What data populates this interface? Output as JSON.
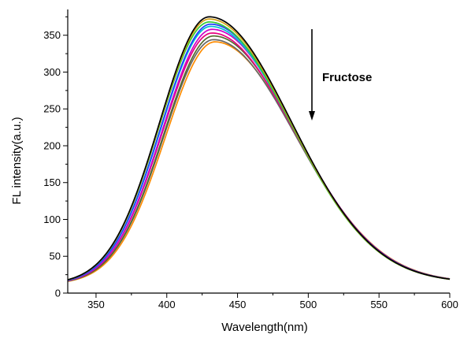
{
  "chart_data": {
    "type": "line",
    "xlabel": "Wavelength(nm)",
    "ylabel": "FL intensity(a.u.)",
    "xlim": [
      330,
      600
    ],
    "ylim": [
      0,
      385
    ],
    "xticks": [
      350,
      400,
      450,
      500,
      550,
      600
    ],
    "yticks": [
      0,
      50,
      100,
      150,
      200,
      250,
      300,
      350
    ],
    "grid": false,
    "annotation": {
      "text": "Fructose",
      "arrow": "down",
      "meaning": "intensity decreases with increasing fructose concentration"
    },
    "series": [
      {
        "color": "#000000",
        "peak_x": 430,
        "peak_y": 375
      },
      {
        "color": "#d4a017",
        "peak_x": 430,
        "peak_y": 372
      },
      {
        "color": "#33cc33",
        "peak_x": 430,
        "peak_y": 368
      },
      {
        "color": "#1f3fff",
        "peak_x": 431,
        "peak_y": 365
      },
      {
        "color": "#00bcd4",
        "peak_x": 431,
        "peak_y": 362
      },
      {
        "color": "#cc00cc",
        "peak_x": 432,
        "peak_y": 358
      },
      {
        "color": "#e6007e",
        "peak_x": 432,
        "peak_y": 353
      },
      {
        "color": "#556b2f",
        "peak_x": 433,
        "peak_y": 349
      },
      {
        "color": "#666666",
        "peak_x": 433,
        "peak_y": 344
      },
      {
        "color": "#ff8c00",
        "peak_x": 434,
        "peak_y": 341
      }
    ]
  }
}
